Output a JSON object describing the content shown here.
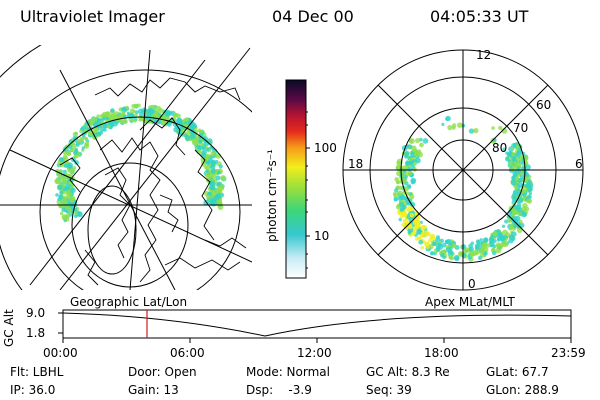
{
  "header": {
    "instrument": "Ultraviolet Imager",
    "date": "04 Dec 00",
    "time": "04:05:33 UT"
  },
  "colorbar": {
    "unit_label": "photon cm⁻²s⁻¹",
    "ticks": [
      "100",
      "10"
    ]
  },
  "polar_plot": {
    "mlt_labels": [
      "12",
      "18",
      "6",
      "0"
    ],
    "lat_labels": [
      "60",
      "70",
      "80"
    ]
  },
  "timeline": {
    "left_title": "Geographic Lat/Lon",
    "right_title": "Apex MLat/MLT",
    "axis_label": "GC Alt",
    "y_ticks": [
      "9.0",
      "1.8"
    ],
    "x_ticks": [
      "00:00",
      "06:00",
      "12:00",
      "18:00",
      "23:59"
    ]
  },
  "info": {
    "row1": [
      "Flt: LBHL",
      "Door: Open",
      "Mode: Normal",
      "GC Alt: 8.3 Re",
      "GLat: 67.7"
    ],
    "row2": [
      "IP: 36.0",
      "Gain: 13",
      "Dsp:    -3.9",
      "Seq: 39",
      "GLon: 288.9"
    ]
  },
  "colors": {
    "aurora_low": "#2fd3c8",
    "aurora_mid": "#8fe04a",
    "aurora_high": "#f0f020",
    "marker": "#d21a1a"
  }
}
